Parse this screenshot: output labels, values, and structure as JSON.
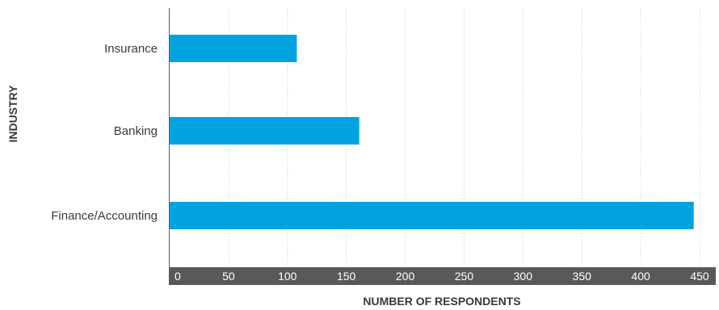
{
  "chart_data": {
    "type": "bar",
    "orientation": "horizontal",
    "categories": [
      "Insurance",
      "Banking",
      "Finance/Accounting"
    ],
    "values": [
      108,
      161,
      445
    ],
    "xlabel": "NUMBER OF RESPONDENTS",
    "ylabel": "INDUSTRY",
    "xlim": [
      0,
      450
    ],
    "xticks": [
      "0",
      "50",
      "100",
      "150",
      "200",
      "250",
      "300",
      "350",
      "400",
      "450"
    ],
    "grid": "vertical",
    "legend": "none"
  },
  "colors": {
    "bar": "#00a3e0",
    "axis_band": "#595959",
    "grid": "#c8c8c8",
    "text": "#3a3a3a"
  }
}
